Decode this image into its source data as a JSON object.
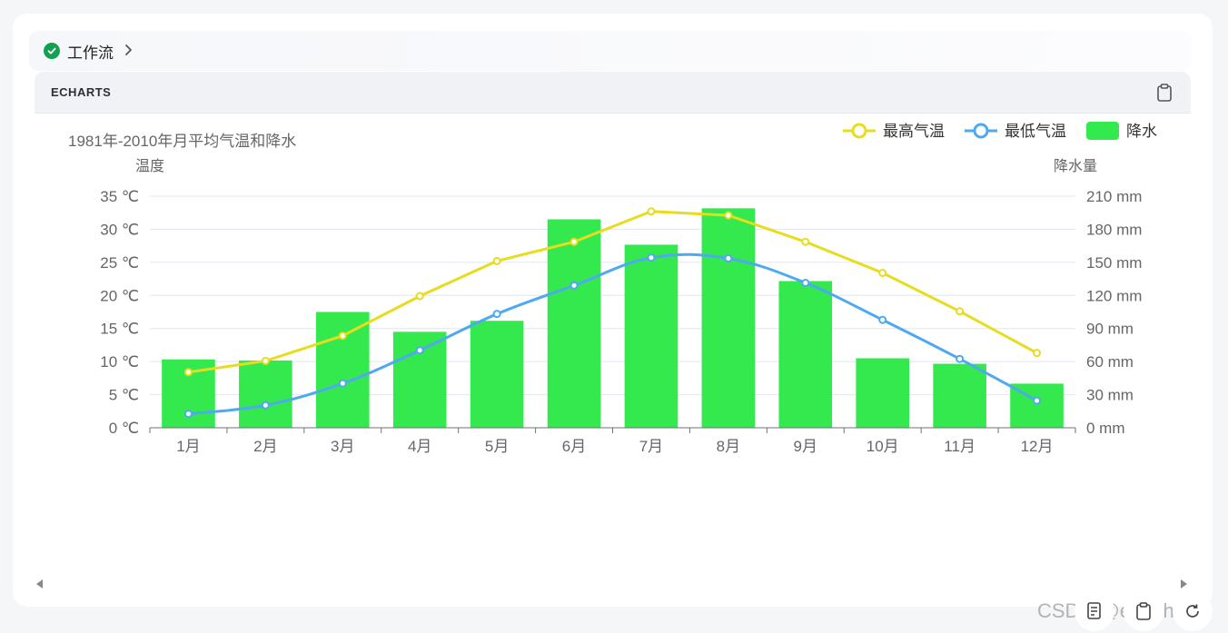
{
  "workflow": {
    "label": "工作流"
  },
  "panel": {
    "title": "ECHARTS"
  },
  "watermark": "CSDN @edgchina",
  "chart_data": {
    "type": "bar",
    "title": "1981年-2010年月平均气温和降水",
    "categories": [
      "1月",
      "2月",
      "3月",
      "4月",
      "5月",
      "6月",
      "7月",
      "8月",
      "9月",
      "10月",
      "11月",
      "12月"
    ],
    "y_left": {
      "label": "温度",
      "min": 0,
      "max": 35,
      "interval": 5,
      "unit": "℃"
    },
    "y_right": {
      "label": "降水量",
      "min": 0,
      "max": 210,
      "interval": 30,
      "unit": "mm"
    },
    "legend": {
      "position": "top-right"
    },
    "grid": true,
    "series": [
      {
        "name": "最高气温",
        "type": "line",
        "axis": "left",
        "color": "#e8dc1e",
        "smooth": false,
        "values": [
          8.4,
          10.1,
          13.9,
          19.9,
          25.2,
          28.1,
          32.7,
          32.1,
          28.1,
          23.4,
          17.6,
          11.3
        ]
      },
      {
        "name": "最低气温",
        "type": "line",
        "axis": "left",
        "color": "#4ea9f0",
        "smooth": true,
        "values": [
          2.1,
          3.4,
          6.7,
          11.7,
          17.2,
          21.5,
          25.7,
          25.6,
          21.9,
          16.3,
          10.4,
          4.1
        ]
      },
      {
        "name": "降水",
        "type": "bar",
        "axis": "right",
        "color": "#33e94d",
        "values": [
          62,
          61,
          105,
          87,
          97,
          189,
          166,
          199,
          133,
          63,
          58,
          40
        ]
      }
    ]
  }
}
